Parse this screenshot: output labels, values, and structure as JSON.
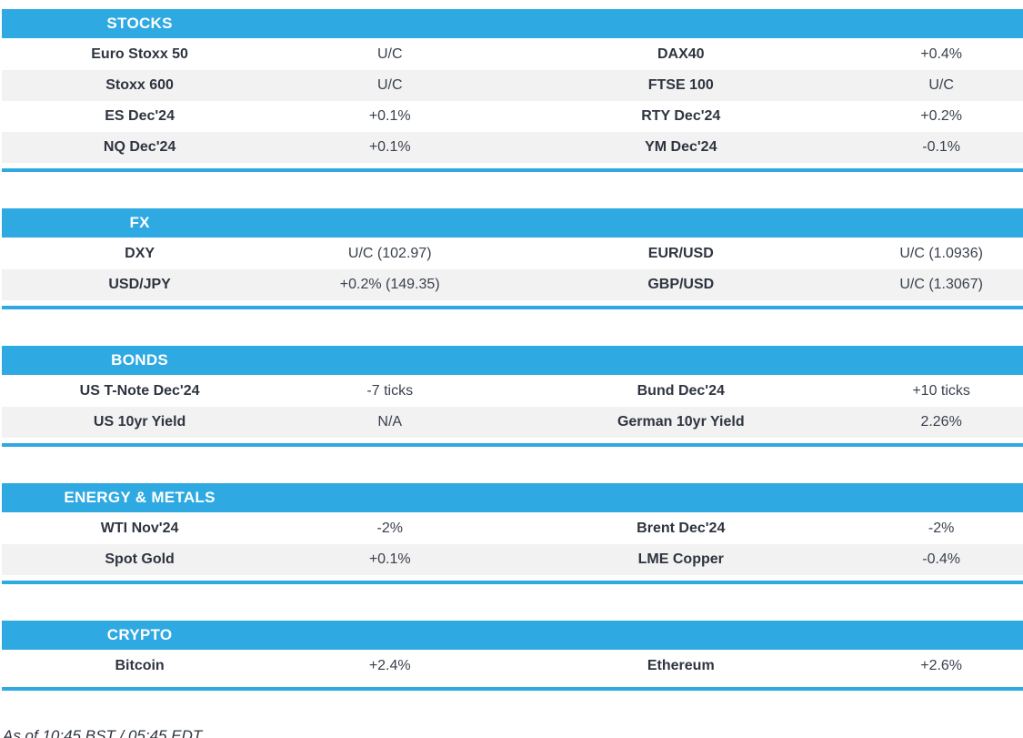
{
  "theme": {
    "accent": "#2FA9E2",
    "row_alt": "#F2F2F2",
    "header_text": "#FFFFFF",
    "label_color": "#2E3440",
    "value_color": "#3A414D"
  },
  "sections": [
    {
      "title": "STOCKS",
      "rows": [
        {
          "cells": [
            "Euro Stoxx 50",
            "U/C",
            "DAX40",
            "+0.4%"
          ]
        },
        {
          "cells": [
            "Stoxx 600",
            "U/C",
            "FTSE 100",
            "U/C"
          ]
        },
        {
          "cells": [
            "ES Dec'24",
            "+0.1%",
            "RTY Dec'24",
            "+0.2%"
          ]
        },
        {
          "cells": [
            "NQ Dec'24",
            "+0.1%",
            "YM Dec'24",
            "-0.1%"
          ]
        }
      ]
    },
    {
      "title": "FX",
      "rows": [
        {
          "cells": [
            "DXY",
            "U/C (102.97)",
            "EUR/USD",
            "U/C (1.0936)"
          ]
        },
        {
          "cells": [
            "USD/JPY",
            "+0.2% (149.35)",
            "GBP/USD",
            "U/C (1.3067)"
          ]
        }
      ]
    },
    {
      "title": "BONDS",
      "rows": [
        {
          "cells": [
            "US T-Note Dec'24",
            "-7 ticks",
            "Bund Dec'24",
            "+10 ticks"
          ]
        },
        {
          "cells": [
            "US 10yr Yield",
            "N/A",
            "German 10yr Yield",
            "2.26%"
          ]
        }
      ]
    },
    {
      "title": "ENERGY & METALS",
      "rows": [
        {
          "cells": [
            "WTI Nov'24",
            "-2%",
            "Brent Dec'24",
            "-2%"
          ]
        },
        {
          "cells": [
            "Spot Gold",
            "+0.1%",
            "LME Copper",
            "-0.4%"
          ]
        }
      ]
    },
    {
      "title": "CRYPTO",
      "rows": [
        {
          "cells": [
            "Bitcoin",
            "+2.4%",
            "Ethereum",
            "+2.6%"
          ]
        }
      ]
    }
  ],
  "footer": {
    "as_of": "As of 10:45 BST / 05:45 EDT"
  }
}
